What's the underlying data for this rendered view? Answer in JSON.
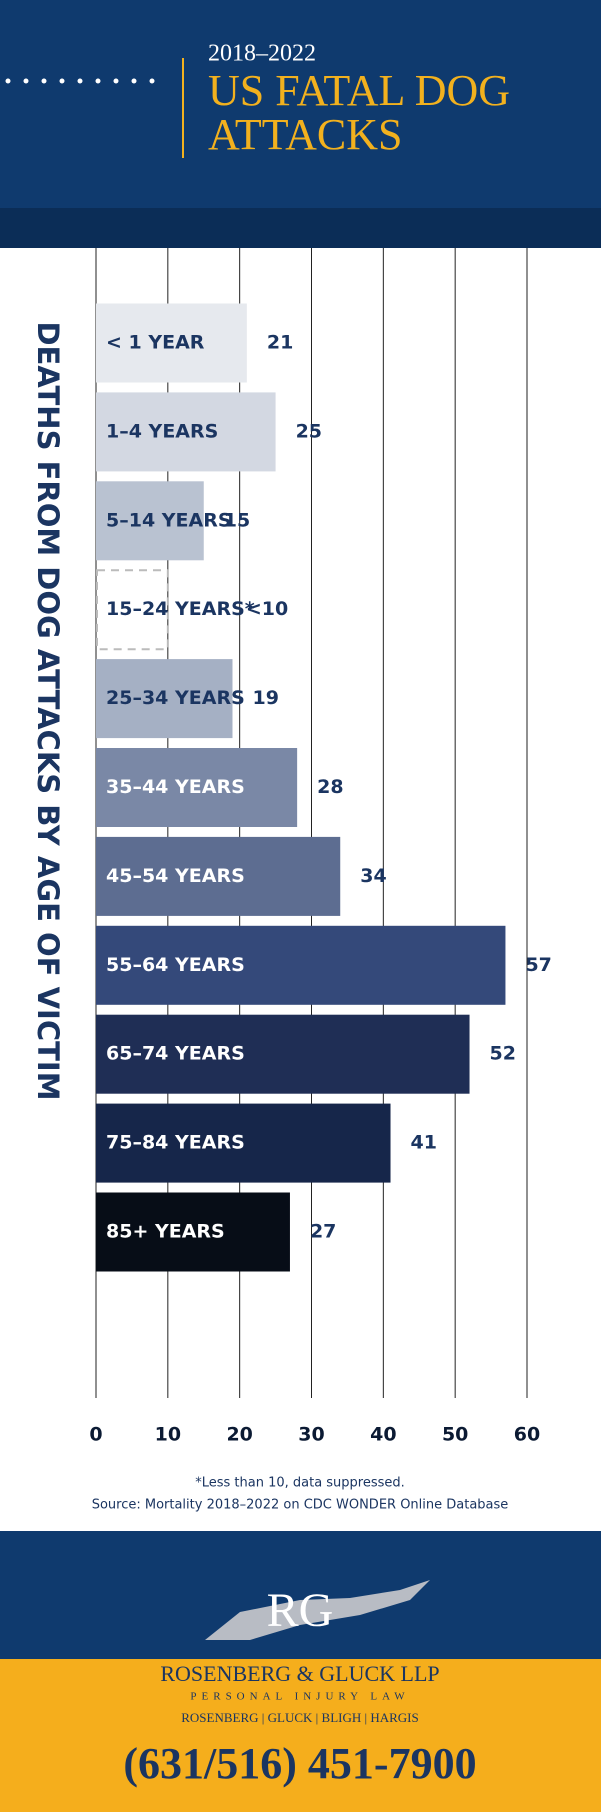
{
  "header": {
    "years": "2018–2022",
    "title_line1": "US FATAL DOG",
    "title_line2": "ATTACKS"
  },
  "chart_data": {
    "type": "bar",
    "orientation": "horizontal",
    "y_axis_label": "DEATHS FROM DOG ATTACKS BY AGE OF VICTIM",
    "categories": [
      "< 1 YEAR",
      "1–4 YEARS",
      "5–14 YEARS",
      "15–24 YEARS*",
      "25–34 YEARS",
      "35–44 YEARS",
      "45–54 YEARS",
      "55–64 YEARS",
      "65–74 YEARS",
      "75–84 YEARS",
      "85+ YEARS"
    ],
    "values": [
      21,
      25,
      15,
      null,
      19,
      28,
      34,
      57,
      52,
      41,
      27
    ],
    "value_labels": [
      "21",
      "25",
      "15",
      "<10",
      "19",
      "28",
      "34",
      "57",
      "52",
      "41",
      "27"
    ],
    "colors": [
      "#e6e9ee",
      "#d3d8e2",
      "#b9c2d1",
      "#ffffff",
      "#a5b0c4",
      "#7a88a6",
      "#5d6d91",
      "#34497a",
      "#1f2e55",
      "#16264a",
      "#070d17"
    ],
    "label_colors": [
      "#1b3561",
      "#1b3561",
      "#1b3561",
      "#1b3561",
      "#1b3561",
      "#ffffff",
      "#ffffff",
      "#ffffff",
      "#ffffff",
      "#ffffff",
      "#ffffff"
    ],
    "xlim": [
      0,
      60
    ],
    "xticks": [
      0,
      10,
      20,
      30,
      40,
      50,
      60
    ],
    "grid": true
  },
  "footnote": "*Less than 10, data suppressed.",
  "source": "Source: Mortality 2018–2022 on CDC WONDER Online Database",
  "footer": {
    "logo": "RG",
    "firm": "ROSENBERG & GLUCK LLP",
    "tagline": "PERSONAL INJURY LAW",
    "partners": "ROSENBERG | GLUCK | BLIGH | HARGIS",
    "phone": "(631/516) 451-7900"
  }
}
